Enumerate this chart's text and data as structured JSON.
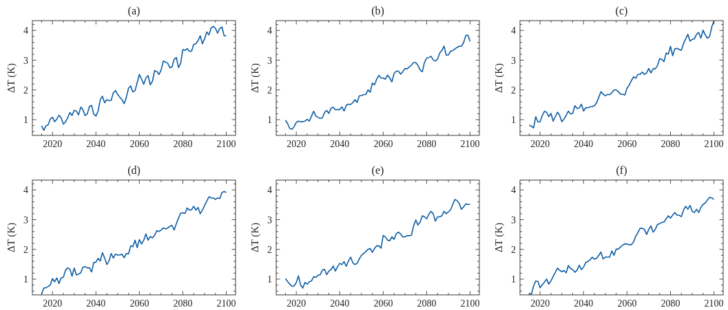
{
  "chart_data": [
    {
      "type": "line",
      "title": "(a)",
      "ylabel": "ΔT (K)",
      "xlim": [
        2010.75,
        2104.25
      ],
      "ylim": [
        0.47,
        4.33
      ],
      "xticks": [
        2020,
        2040,
        2060,
        2080,
        2100,
        {
          "value": 2015,
          "label": null
        },
        {
          "value": 2025,
          "label": null
        },
        {
          "value": 2030,
          "label": null
        },
        {
          "value": 2035,
          "label": null
        },
        {
          "value": 2045,
          "label": null
        },
        {
          "value": 2050,
          "label": null
        },
        {
          "value": 2055,
          "label": null
        },
        {
          "value": 2065,
          "label": null
        },
        {
          "value": 2070,
          "label": null
        },
        {
          "value": 2075,
          "label": null
        },
        {
          "value": 2085,
          "label": null
        },
        {
          "value": 2090,
          "label": null
        },
        {
          "value": 2095,
          "label": null
        }
      ],
      "yticks": [
        1,
        2,
        3,
        4,
        {
          "value": 0.6,
          "label": null
        },
        {
          "value": 0.8,
          "label": null
        },
        {
          "value": 1.2,
          "label": null
        },
        {
          "value": 1.4,
          "label": null
        },
        {
          "value": 1.6,
          "label": null
        },
        {
          "value": 1.8,
          "label": null
        },
        {
          "value": 2.2,
          "label": null
        },
        {
          "value": 2.4,
          "label": null
        },
        {
          "value": 2.6,
          "label": null
        },
        {
          "value": 2.8,
          "label": null
        },
        {
          "value": 3.2,
          "label": null
        },
        {
          "value": 3.4,
          "label": null
        },
        {
          "value": 3.6,
          "label": null
        },
        {
          "value": 3.8,
          "label": null
        },
        {
          "value": 4.2,
          "label": null
        }
      ],
      "x": [
        2015,
        2016,
        2017,
        2018,
        2019,
        2020,
        2021,
        2022,
        2023,
        2024,
        2025,
        2026,
        2027,
        2028,
        2029,
        2030,
        2031,
        2032,
        2033,
        2034,
        2035,
        2036,
        2037,
        2038,
        2039,
        2040,
        2041,
        2042,
        2043,
        2044,
        2045,
        2046,
        2047,
        2048,
        2049,
        2050,
        2051,
        2052,
        2053,
        2054,
        2055,
        2056,
        2057,
        2058,
        2059,
        2060,
        2061,
        2062,
        2063,
        2064,
        2065,
        2066,
        2067,
        2068,
        2069,
        2070,
        2071,
        2072,
        2073,
        2074,
        2075,
        2076,
        2077,
        2078,
        2079,
        2080,
        2081,
        2082,
        2083,
        2084,
        2085,
        2086,
        2087,
        2088,
        2089,
        2090,
        2091,
        2092,
        2093,
        2094,
        2095,
        2096,
        2097,
        2098,
        2099,
        2100
      ],
      "series": [
        {
          "color": "#0c5da5",
          "values": [
            0.79,
            0.64,
            0.79,
            0.83,
            1.02,
            1.08,
            0.93,
            1.02,
            1.15,
            1.06,
            0.85,
            0.92,
            1.06,
            1.24,
            1.14,
            1.31,
            1.29,
            1.16,
            1.42,
            1.34,
            1.14,
            1.19,
            1.44,
            1.48,
            1.19,
            1.12,
            1.29,
            1.67,
            1.79,
            1.57,
            1.67,
            1.64,
            1.65,
            1.9,
            1.98,
            1.85,
            1.75,
            1.67,
            1.54,
            1.75,
            2.06,
            2.13,
            1.93,
            1.98,
            2.25,
            2.52,
            2.36,
            2.19,
            2.4,
            2.48,
            2.17,
            2.29,
            2.65,
            2.62,
            2.52,
            2.67,
            2.97,
            2.94,
            2.9,
            2.75,
            2.77,
            3.03,
            3.09,
            2.75,
            2.9,
            3.36,
            3.33,
            3.39,
            3.3,
            3.3,
            3.53,
            3.55,
            3.66,
            3.82,
            3.55,
            3.72,
            3.95,
            3.85,
            4.08,
            4.14,
            4.07,
            3.91,
            4.07,
            4.11,
            3.82,
            3.82
          ]
        }
      ]
    },
    {
      "type": "line",
      "title": "(b)",
      "ylabel": "ΔT (K)",
      "xlim": [
        2010.75,
        2104.25
      ],
      "ylim": [
        0.47,
        4.33
      ],
      "xticks": [
        2020,
        2040,
        2060,
        2080,
        2100,
        {
          "value": 2015,
          "label": null
        },
        {
          "value": 2025,
          "label": null
        },
        {
          "value": 2030,
          "label": null
        },
        {
          "value": 2035,
          "label": null
        },
        {
          "value": 2045,
          "label": null
        },
        {
          "value": 2050,
          "label": null
        },
        {
          "value": 2055,
          "label": null
        },
        {
          "value": 2065,
          "label": null
        },
        {
          "value": 2070,
          "label": null
        },
        {
          "value": 2075,
          "label": null
        },
        {
          "value": 2085,
          "label": null
        },
        {
          "value": 2090,
          "label": null
        },
        {
          "value": 2095,
          "label": null
        }
      ],
      "yticks": [
        1,
        2,
        3,
        4,
        {
          "value": 0.6,
          "label": null
        },
        {
          "value": 0.8,
          "label": null
        },
        {
          "value": 1.2,
          "label": null
        },
        {
          "value": 1.4,
          "label": null
        },
        {
          "value": 1.6,
          "label": null
        },
        {
          "value": 1.8,
          "label": null
        },
        {
          "value": 2.2,
          "label": null
        },
        {
          "value": 2.4,
          "label": null
        },
        {
          "value": 2.6,
          "label": null
        },
        {
          "value": 2.8,
          "label": null
        },
        {
          "value": 3.2,
          "label": null
        },
        {
          "value": 3.4,
          "label": null
        },
        {
          "value": 3.6,
          "label": null
        },
        {
          "value": 3.8,
          "label": null
        },
        {
          "value": 4.2,
          "label": null
        }
      ],
      "x": [
        2015,
        2016,
        2017,
        2018,
        2019,
        2020,
        2021,
        2022,
        2023,
        2024,
        2025,
        2026,
        2027,
        2028,
        2029,
        2030,
        2031,
        2032,
        2033,
        2034,
        2035,
        2036,
        2037,
        2038,
        2039,
        2040,
        2041,
        2042,
        2043,
        2044,
        2045,
        2046,
        2047,
        2048,
        2049,
        2050,
        2051,
        2052,
        2053,
        2054,
        2055,
        2056,
        2057,
        2058,
        2059,
        2060,
        2061,
        2062,
        2063,
        2064,
        2065,
        2066,
        2067,
        2068,
        2069,
        2070,
        2071,
        2072,
        2073,
        2074,
        2075,
        2076,
        2077,
        2078,
        2079,
        2080,
        2081,
        2082,
        2083,
        2084,
        2085,
        2086,
        2087,
        2088,
        2089,
        2090,
        2091,
        2092,
        2093,
        2094,
        2095,
        2096,
        2097,
        2098,
        2099,
        2100
      ],
      "series": [
        {
          "color": "#0c5da5",
          "values": [
            0.98,
            0.87,
            0.7,
            0.68,
            0.76,
            0.91,
            0.95,
            0.93,
            0.93,
            0.95,
            1.01,
            0.95,
            1.12,
            1.28,
            1.12,
            1.08,
            1.04,
            1.06,
            1.24,
            1.31,
            1.21,
            1.39,
            1.42,
            1.33,
            1.34,
            1.34,
            1.43,
            1.29,
            1.48,
            1.52,
            1.51,
            1.57,
            1.67,
            1.58,
            1.8,
            1.81,
            1.84,
            1.85,
            2.0,
            1.92,
            2.23,
            2.17,
            2.36,
            2.49,
            2.4,
            2.4,
            2.36,
            2.5,
            2.4,
            2.27,
            2.55,
            2.63,
            2.63,
            2.53,
            2.61,
            2.72,
            2.71,
            2.77,
            2.84,
            2.92,
            2.92,
            2.82,
            2.67,
            2.61,
            2.93,
            3.07,
            3.09,
            3.13,
            3.01,
            2.97,
            3.03,
            3.24,
            3.33,
            3.47,
            3.17,
            3.18,
            3.3,
            3.32,
            3.38,
            3.43,
            3.47,
            3.47,
            3.59,
            3.83,
            3.84,
            3.63
          ]
        }
      ]
    },
    {
      "type": "line",
      "title": "(c)",
      "ylabel": "ΔT (K)",
      "xlim": [
        2010.75,
        2104.25
      ],
      "ylim": [
        0.47,
        4.33
      ],
      "xticks": [
        2020,
        2040,
        2060,
        2080,
        2100,
        {
          "value": 2015,
          "label": null
        },
        {
          "value": 2025,
          "label": null
        },
        {
          "value": 2030,
          "label": null
        },
        {
          "value": 2035,
          "label": null
        },
        {
          "value": 2045,
          "label": null
        },
        {
          "value": 2050,
          "label": null
        },
        {
          "value": 2055,
          "label": null
        },
        {
          "value": 2065,
          "label": null
        },
        {
          "value": 2070,
          "label": null
        },
        {
          "value": 2075,
          "label": null
        },
        {
          "value": 2085,
          "label": null
        },
        {
          "value": 2090,
          "label": null
        },
        {
          "value": 2095,
          "label": null
        }
      ],
      "yticks": [
        1,
        2,
        3,
        4,
        {
          "value": 0.6,
          "label": null
        },
        {
          "value": 0.8,
          "label": null
        },
        {
          "value": 1.2,
          "label": null
        },
        {
          "value": 1.4,
          "label": null
        },
        {
          "value": 1.6,
          "label": null
        },
        {
          "value": 1.8,
          "label": null
        },
        {
          "value": 2.2,
          "label": null
        },
        {
          "value": 2.4,
          "label": null
        },
        {
          "value": 2.6,
          "label": null
        },
        {
          "value": 2.8,
          "label": null
        },
        {
          "value": 3.2,
          "label": null
        },
        {
          "value": 3.4,
          "label": null
        },
        {
          "value": 3.6,
          "label": null
        },
        {
          "value": 3.8,
          "label": null
        },
        {
          "value": 4.2,
          "label": null
        }
      ],
      "x": [
        2015,
        2016,
        2017,
        2018,
        2019,
        2020,
        2021,
        2022,
        2023,
        2024,
        2025,
        2026,
        2027,
        2028,
        2029,
        2030,
        2031,
        2032,
        2033,
        2034,
        2035,
        2036,
        2037,
        2038,
        2039,
        2040,
        2041,
        2042,
        2043,
        2044,
        2045,
        2046,
        2047,
        2048,
        2049,
        2050,
        2051,
        2052,
        2053,
        2054,
        2055,
        2056,
        2057,
        2058,
        2059,
        2060,
        2061,
        2062,
        2063,
        2064,
        2065,
        2066,
        2067,
        2068,
        2069,
        2070,
        2071,
        2072,
        2073,
        2074,
        2075,
        2076,
        2077,
        2078,
        2079,
        2080,
        2081,
        2082,
        2083,
        2084,
        2085,
        2086,
        2087,
        2088,
        2089,
        2090,
        2091,
        2092,
        2093,
        2094,
        2095,
        2096,
        2097,
        2098,
        2099,
        2100
      ],
      "series": [
        {
          "color": "#0c5da5",
          "values": [
            0.81,
            0.78,
            0.72,
            1.1,
            0.92,
            0.93,
            1.14,
            1.28,
            1.25,
            1.1,
            1.21,
            0.95,
            1.1,
            1.25,
            1.14,
            0.93,
            1.02,
            1.14,
            1.29,
            1.19,
            1.21,
            1.47,
            1.38,
            1.39,
            1.52,
            1.29,
            1.4,
            1.4,
            1.43,
            1.44,
            1.47,
            1.57,
            1.75,
            1.94,
            1.86,
            1.8,
            1.85,
            1.84,
            1.9,
            2.0,
            2.0,
            1.94,
            1.86,
            1.85,
            1.83,
            2.06,
            2.16,
            2.31,
            2.44,
            2.39,
            2.52,
            2.52,
            2.6,
            2.52,
            2.57,
            2.72,
            2.57,
            2.71,
            2.71,
            2.82,
            3.05,
            3.03,
            2.95,
            3.24,
            3.2,
            3.47,
            3.15,
            3.38,
            3.4,
            3.36,
            3.33,
            3.56,
            3.72,
            3.87,
            3.64,
            3.7,
            3.72,
            3.87,
            3.93,
            3.74,
            4.01,
            3.85,
            3.74,
            3.79,
            4.12,
            4.31
          ]
        }
      ]
    },
    {
      "type": "line",
      "title": "(d)",
      "ylabel": "ΔT (K)",
      "xlim": [
        2010.75,
        2104.25
      ],
      "ylim": [
        0.47,
        4.33
      ],
      "xticks": [
        2020,
        2040,
        2060,
        2080,
        2100,
        {
          "value": 2015,
          "label": null
        },
        {
          "value": 2025,
          "label": null
        },
        {
          "value": 2030,
          "label": null
        },
        {
          "value": 2035,
          "label": null
        },
        {
          "value": 2045,
          "label": null
        },
        {
          "value": 2050,
          "label": null
        },
        {
          "value": 2055,
          "label": null
        },
        {
          "value": 2065,
          "label": null
        },
        {
          "value": 2070,
          "label": null
        },
        {
          "value": 2075,
          "label": null
        },
        {
          "value": 2085,
          "label": null
        },
        {
          "value": 2090,
          "label": null
        },
        {
          "value": 2095,
          "label": null
        }
      ],
      "yticks": [
        1,
        2,
        3,
        4,
        {
          "value": 0.6,
          "label": null
        },
        {
          "value": 0.8,
          "label": null
        },
        {
          "value": 1.2,
          "label": null
        },
        {
          "value": 1.4,
          "label": null
        },
        {
          "value": 1.6,
          "label": null
        },
        {
          "value": 1.8,
          "label": null
        },
        {
          "value": 2.2,
          "label": null
        },
        {
          "value": 2.4,
          "label": null
        },
        {
          "value": 2.6,
          "label": null
        },
        {
          "value": 2.8,
          "label": null
        },
        {
          "value": 3.2,
          "label": null
        },
        {
          "value": 3.4,
          "label": null
        },
        {
          "value": 3.6,
          "label": null
        },
        {
          "value": 3.8,
          "label": null
        },
        {
          "value": 4.2,
          "label": null
        }
      ],
      "x": [
        2015,
        2016,
        2017,
        2018,
        2019,
        2020,
        2021,
        2022,
        2023,
        2024,
        2025,
        2026,
        2027,
        2028,
        2029,
        2030,
        2031,
        2032,
        2033,
        2034,
        2035,
        2036,
        2037,
        2038,
        2039,
        2040,
        2041,
        2042,
        2043,
        2044,
        2045,
        2046,
        2047,
        2048,
        2049,
        2050,
        2051,
        2052,
        2053,
        2054,
        2055,
        2056,
        2057,
        2058,
        2059,
        2060,
        2061,
        2062,
        2063,
        2064,
        2065,
        2066,
        2067,
        2068,
        2069,
        2070,
        2071,
        2072,
        2073,
        2074,
        2075,
        2076,
        2077,
        2078,
        2079,
        2080,
        2081,
        2082,
        2083,
        2084,
        2085,
        2086,
        2087,
        2088,
        2089,
        2090,
        2091,
        2092,
        2093,
        2094,
        2095,
        2096,
        2097,
        2098,
        2099,
        2100
      ],
      "series": [
        {
          "color": "#0c5da5",
          "values": [
            0.5,
            0.7,
            0.71,
            0.75,
            0.81,
            1.02,
            0.91,
            1.04,
            0.85,
            1.04,
            1.06,
            1.3,
            1.38,
            1.34,
            1.1,
            1.37,
            1.14,
            1.17,
            1.21,
            1.4,
            1.42,
            1.38,
            1.38,
            1.24,
            1.56,
            1.57,
            1.7,
            1.61,
            1.89,
            1.71,
            1.49,
            1.61,
            1.86,
            1.71,
            1.84,
            1.81,
            1.81,
            1.84,
            1.72,
            1.86,
            1.85,
            2.12,
            2.09,
            2.31,
            2.06,
            2.33,
            2.18,
            2.31,
            2.52,
            2.31,
            2.43,
            2.39,
            2.47,
            2.63,
            2.6,
            2.65,
            2.72,
            2.69,
            2.72,
            2.77,
            2.81,
            2.65,
            2.86,
            3.05,
            3.22,
            3.23,
            3.21,
            3.39,
            3.32,
            3.33,
            3.45,
            3.32,
            3.41,
            3.2,
            3.32,
            3.47,
            3.62,
            3.77,
            3.73,
            3.73,
            3.68,
            3.73,
            3.71,
            3.91,
            3.95,
            3.91
          ]
        }
      ]
    },
    {
      "type": "line",
      "title": "(e)",
      "ylabel": "ΔT (K)",
      "xlim": [
        2010.75,
        2104.25
      ],
      "ylim": [
        0.47,
        4.33
      ],
      "xticks": [
        2020,
        2040,
        2060,
        2080,
        2100,
        {
          "value": 2015,
          "label": null
        },
        {
          "value": 2025,
          "label": null
        },
        {
          "value": 2030,
          "label": null
        },
        {
          "value": 2035,
          "label": null
        },
        {
          "value": 2045,
          "label": null
        },
        {
          "value": 2050,
          "label": null
        },
        {
          "value": 2055,
          "label": null
        },
        {
          "value": 2065,
          "label": null
        },
        {
          "value": 2070,
          "label": null
        },
        {
          "value": 2075,
          "label": null
        },
        {
          "value": 2085,
          "label": null
        },
        {
          "value": 2090,
          "label": null
        },
        {
          "value": 2095,
          "label": null
        }
      ],
      "yticks": [
        1,
        2,
        3,
        4,
        {
          "value": 0.6,
          "label": null
        },
        {
          "value": 0.8,
          "label": null
        },
        {
          "value": 1.2,
          "label": null
        },
        {
          "value": 1.4,
          "label": null
        },
        {
          "value": 1.6,
          "label": null
        },
        {
          "value": 1.8,
          "label": null
        },
        {
          "value": 2.2,
          "label": null
        },
        {
          "value": 2.4,
          "label": null
        },
        {
          "value": 2.6,
          "label": null
        },
        {
          "value": 2.8,
          "label": null
        },
        {
          "value": 3.2,
          "label": null
        },
        {
          "value": 3.4,
          "label": null
        },
        {
          "value": 3.6,
          "label": null
        },
        {
          "value": 3.8,
          "label": null
        },
        {
          "value": 4.2,
          "label": null
        }
      ],
      "x": [
        2015,
        2016,
        2017,
        2018,
        2019,
        2020,
        2021,
        2022,
        2023,
        2024,
        2025,
        2026,
        2027,
        2028,
        2029,
        2030,
        2031,
        2032,
        2033,
        2034,
        2035,
        2036,
        2037,
        2038,
        2039,
        2040,
        2041,
        2042,
        2043,
        2044,
        2045,
        2046,
        2047,
        2048,
        2049,
        2050,
        2051,
        2052,
        2053,
        2054,
        2055,
        2056,
        2057,
        2058,
        2059,
        2060,
        2061,
        2062,
        2063,
        2064,
        2065,
        2066,
        2067,
        2068,
        2069,
        2070,
        2071,
        2072,
        2073,
        2074,
        2075,
        2076,
        2077,
        2078,
        2079,
        2080,
        2081,
        2082,
        2083,
        2084,
        2085,
        2086,
        2087,
        2088,
        2089,
        2090,
        2091,
        2092,
        2093,
        2094,
        2095,
        2096,
        2097,
        2098,
        2099,
        2100
      ],
      "series": [
        {
          "color": "#0c5da5",
          "values": [
            1.02,
            0.92,
            0.83,
            0.76,
            0.77,
            0.89,
            1.11,
            0.8,
            0.7,
            0.89,
            0.83,
            0.91,
            0.94,
            1.08,
            1.06,
            1.13,
            1.15,
            1.3,
            1.33,
            1.15,
            1.27,
            1.32,
            1.44,
            1.27,
            1.42,
            1.53,
            1.49,
            1.59,
            1.43,
            1.61,
            1.74,
            1.55,
            1.49,
            1.53,
            1.68,
            1.8,
            1.86,
            1.93,
            2.0,
            2.03,
            1.9,
            2.03,
            2.12,
            2.12,
            2.04,
            2.47,
            2.42,
            2.31,
            2.29,
            2.42,
            2.34,
            2.52,
            2.58,
            2.52,
            2.42,
            2.42,
            2.46,
            2.46,
            2.48,
            2.79,
            2.99,
            2.82,
            2.92,
            3.13,
            3.1,
            3.03,
            3.18,
            3.28,
            3.2,
            2.95,
            3.09,
            3.1,
            3.13,
            3.28,
            3.2,
            3.26,
            3.33,
            3.51,
            3.68,
            3.64,
            3.54,
            3.35,
            3.43,
            3.53,
            3.51,
            3.52
          ]
        }
      ]
    },
    {
      "type": "line",
      "title": "(f)",
      "ylabel": "ΔT (K)",
      "xlim": [
        2010.75,
        2104.25
      ],
      "ylim": [
        0.47,
        4.33
      ],
      "xticks": [
        2020,
        2040,
        2060,
        2080,
        2100,
        {
          "value": 2015,
          "label": null
        },
        {
          "value": 2025,
          "label": null
        },
        {
          "value": 2030,
          "label": null
        },
        {
          "value": 2035,
          "label": null
        },
        {
          "value": 2045,
          "label": null
        },
        {
          "value": 2050,
          "label": null
        },
        {
          "value": 2055,
          "label": null
        },
        {
          "value": 2065,
          "label": null
        },
        {
          "value": 2070,
          "label": null
        },
        {
          "value": 2075,
          "label": null
        },
        {
          "value": 2085,
          "label": null
        },
        {
          "value": 2090,
          "label": null
        },
        {
          "value": 2095,
          "label": null
        }
      ],
      "yticks": [
        1,
        2,
        3,
        4,
        {
          "value": 0.6,
          "label": null
        },
        {
          "value": 0.8,
          "label": null
        },
        {
          "value": 1.2,
          "label": null
        },
        {
          "value": 1.4,
          "label": null
        },
        {
          "value": 1.6,
          "label": null
        },
        {
          "value": 1.8,
          "label": null
        },
        {
          "value": 2.2,
          "label": null
        },
        {
          "value": 2.4,
          "label": null
        },
        {
          "value": 2.6,
          "label": null
        },
        {
          "value": 2.8,
          "label": null
        },
        {
          "value": 3.2,
          "label": null
        },
        {
          "value": 3.4,
          "label": null
        },
        {
          "value": 3.6,
          "label": null
        },
        {
          "value": 3.8,
          "label": null
        },
        {
          "value": 4.2,
          "label": null
        }
      ],
      "x": [
        2015,
        2016,
        2017,
        2018,
        2019,
        2020,
        2021,
        2022,
        2023,
        2024,
        2025,
        2026,
        2027,
        2028,
        2029,
        2030,
        2031,
        2032,
        2033,
        2034,
        2035,
        2036,
        2037,
        2038,
        2039,
        2040,
        2041,
        2042,
        2043,
        2044,
        2045,
        2046,
        2047,
        2048,
        2049,
        2050,
        2051,
        2052,
        2053,
        2054,
        2055,
        2056,
        2057,
        2058,
        2059,
        2060,
        2061,
        2062,
        2063,
        2064,
        2065,
        2066,
        2067,
        2068,
        2069,
        2070,
        2071,
        2072,
        2073,
        2074,
        2075,
        2076,
        2077,
        2078,
        2079,
        2080,
        2081,
        2082,
        2083,
        2084,
        2085,
        2086,
        2087,
        2088,
        2089,
        2090,
        2091,
        2092,
        2093,
        2094,
        2095,
        2096,
        2097,
        2098,
        2099,
        2100
      ],
      "series": [
        {
          "color": "#0c5da5",
          "values": [
            0.52,
            0.49,
            0.77,
            0.94,
            0.92,
            0.71,
            0.81,
            0.9,
            1.0,
            0.83,
            0.94,
            1.09,
            1.23,
            1.37,
            1.3,
            1.25,
            1.29,
            1.21,
            1.46,
            1.36,
            1.32,
            1.23,
            1.3,
            1.47,
            1.32,
            1.4,
            1.56,
            1.59,
            1.65,
            1.74,
            1.67,
            1.7,
            1.8,
            1.91,
            1.68,
            1.74,
            1.74,
            1.74,
            1.95,
            1.8,
            2.01,
            2.01,
            2.08,
            2.14,
            2.19,
            2.18,
            2.15,
            2.16,
            2.25,
            2.44,
            2.56,
            2.71,
            2.71,
            2.67,
            2.5,
            2.67,
            2.79,
            2.58,
            2.67,
            2.84,
            2.86,
            2.91,
            2.92,
            3.03,
            3.13,
            3.05,
            3.15,
            3.24,
            3.15,
            3.15,
            3.1,
            3.32,
            3.45,
            3.35,
            3.48,
            3.28,
            3.24,
            3.35,
            3.24,
            3.41,
            3.51,
            3.56,
            3.66,
            3.75,
            3.73,
            3.68
          ]
        }
      ]
    }
  ]
}
